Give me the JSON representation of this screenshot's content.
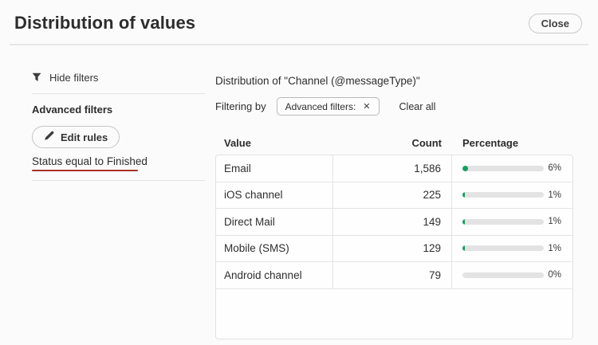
{
  "dialog": {
    "title": "Distribution of values",
    "close_label": "Close"
  },
  "sidebar": {
    "hide_filters_label": "Hide filters",
    "advanced_filters_heading": "Advanced filters",
    "edit_rules_label": "Edit rules",
    "filter_rule": "Status equal to Finished"
  },
  "main": {
    "heading": "Distribution of \"Channel (@messageType)\"",
    "filtering_by_label": "Filtering by",
    "filter_chip": {
      "label": "Advanced filters:",
      "remove_icon": "✕"
    },
    "clear_all_label": "Clear all"
  },
  "chart_data": {
    "type": "table",
    "title": "Distribution of \"Channel (@messageType)\"",
    "columns": [
      "Value",
      "Count",
      "Percentage"
    ],
    "rows": [
      {
        "value": "Email",
        "count": "1,586",
        "percentage": 6
      },
      {
        "value": "iOS channel",
        "count": "225",
        "percentage": 1
      },
      {
        "value": "Direct Mail",
        "count": "149",
        "percentage": 1
      },
      {
        "value": "Mobile (SMS)",
        "count": "129",
        "percentage": 1
      },
      {
        "value": "Android channel",
        "count": "79",
        "percentage": 0
      }
    ]
  },
  "colors": {
    "bar_fill": "#12a05f",
    "bar_track": "#e3e3e3",
    "rule_underline": "#a93226"
  }
}
